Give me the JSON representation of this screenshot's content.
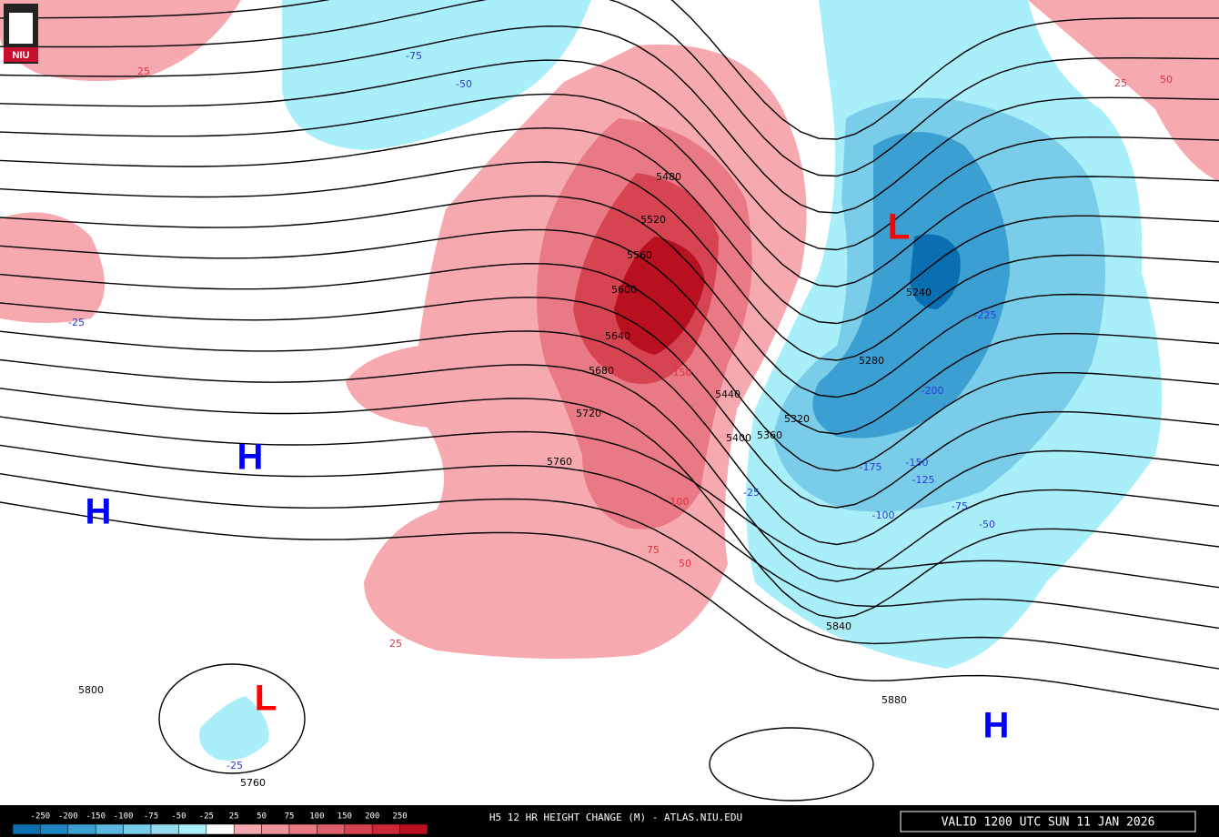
{
  "logo": "NIU",
  "title": "H5 12 HR HEIGHT CHANGE (M) - ATLAS.NIU.EDU",
  "valid": "VALID 1200 UTC SUN 11 JAN 2026",
  "legend": {
    "levels": [
      -250,
      -200,
      -150,
      -100,
      -75,
      -50,
      -25,
      25,
      50,
      75,
      100,
      150,
      200,
      250
    ],
    "colors": [
      "#0a6fb0",
      "#1d86c2",
      "#3c9fd2",
      "#5cb8e0",
      "#79cde8",
      "#93dcef",
      "#a9effa",
      "#ffffff",
      "#f7a9b0",
      "#f0939c",
      "#e97984",
      "#e05e6b",
      "#d64452",
      "#cc2838",
      "#b8101f"
    ]
  },
  "centers": [
    "H",
    "H",
    "L",
    "L",
    "H"
  ],
  "height_labels": [
    "5480",
    "5520",
    "5560",
    "5600",
    "5640",
    "5680",
    "5720",
    "5760",
    "5440",
    "5400",
    "5360",
    "5320",
    "5280",
    "5240",
    "5840",
    "5880",
    "5800",
    "5760"
  ],
  "change_labels": [
    "-75",
    "-50",
    "25",
    "-25",
    "25",
    "75",
    "50",
    "100",
    "150",
    "-25",
    "-225",
    "-200",
    "-175",
    "-150",
    "-125",
    "-100",
    "-75",
    "-50",
    "25",
    "50",
    "-25"
  ]
}
